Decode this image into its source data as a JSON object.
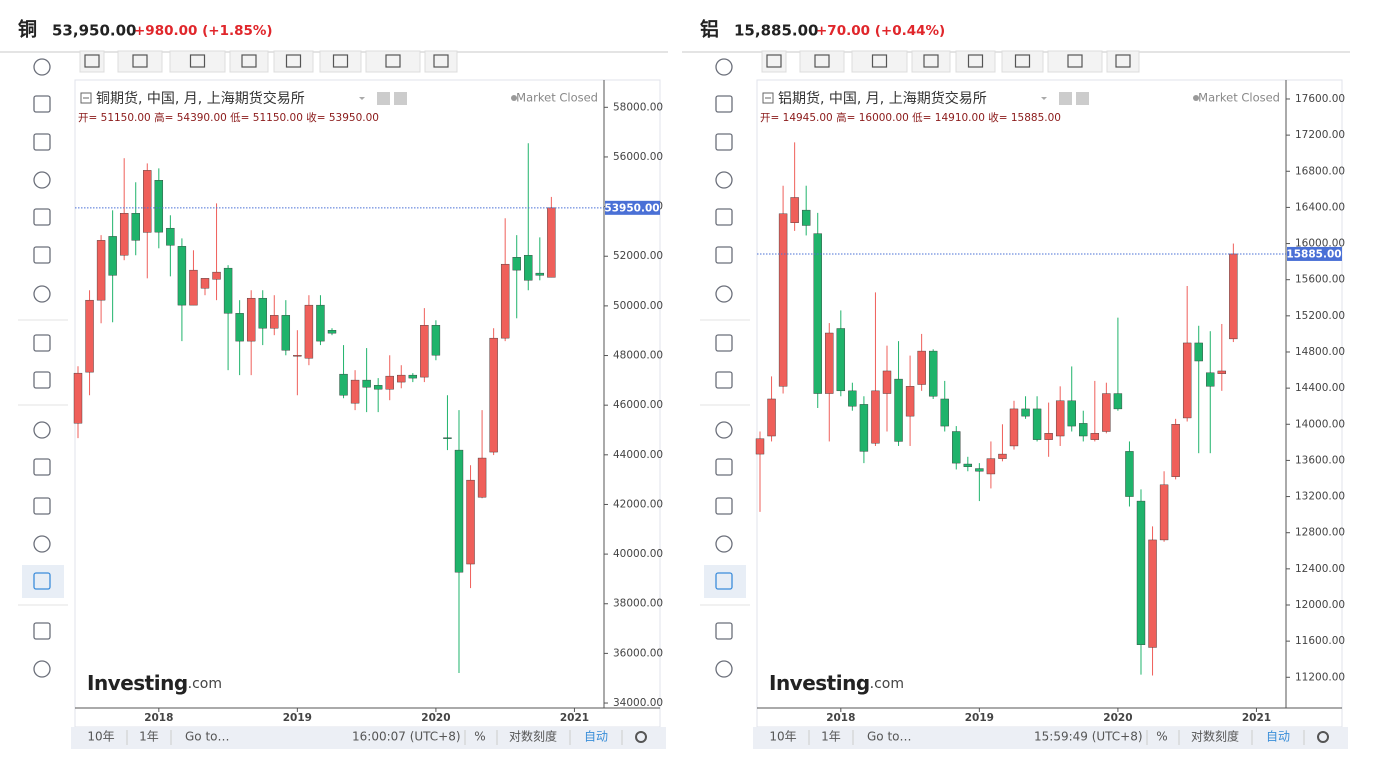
{
  "quotes": [
    {
      "symbol": "铜",
      "price": "53,950.00",
      "change": "+980.00 (+1.85%)"
    },
    {
      "symbol": "铝",
      "price": "15,885.00",
      "change": "+70.00 (+0.44%)"
    }
  ],
  "watermark": {
    "brand": "Investing",
    "suffix": ".com"
  },
  "chart_data": [
    {
      "type": "candlestick",
      "title": "铜期货, 中国, 月, 上海期货交易所",
      "status": "Market Closed",
      "ohlc_text": "开= 51150.00 高= 54390.00 低= 51150.00 收= 53950.00",
      "categories": [
        null,
        null,
        null,
        null,
        null,
        null,
        null,
        "2018",
        null,
        null,
        null,
        null,
        null,
        null,
        null,
        null,
        null,
        null,
        null,
        "2019",
        null,
        null,
        null,
        null,
        null,
        null,
        null,
        null,
        null,
        null,
        null,
        "2020",
        null,
        null,
        null,
        null,
        null,
        null,
        null,
        null,
        null,
        null,
        null,
        "2021"
      ],
      "open": [
        45270,
        47330,
        50230,
        52800,
        52040,
        53730,
        52960,
        55060,
        53130,
        52400,
        50030,
        50710,
        51070,
        51520,
        49700,
        48580,
        50310,
        49100,
        49620,
        47970,
        47890,
        50030,
        49020,
        47250,
        46080,
        47010,
        46800,
        46640,
        46930,
        47210,
        47130,
        49220,
        44690,
        44190,
        39600,
        42290,
        44110,
        48700,
        51960,
        52040,
        51320,
        51150,
        null,
        null
      ],
      "high": [
        47570,
        50630,
        52850,
        53850,
        55950,
        54980,
        55740,
        55540,
        53650,
        52720,
        52240,
        51110,
        54130,
        51640,
        50230,
        50630,
        50630,
        50430,
        50230,
        49020,
        50430,
        50430,
        49100,
        48420,
        47410,
        48300,
        47090,
        48010,
        47610,
        47290,
        49910,
        49420,
        46400,
        45800,
        43580,
        45800,
        49100,
        53530,
        52850,
        56550,
        52760,
        54390,
        null,
        null
      ],
      "low": [
        44670,
        46400,
        49300,
        49340,
        51840,
        52040,
        51110,
        52320,
        51190,
        48580,
        50030,
        50430,
        50230,
        47410,
        47210,
        47210,
        48420,
        48820,
        48010,
        46400,
        47610,
        48420,
        48820,
        46280,
        45800,
        45720,
        45720,
        46200,
        46680,
        46930,
        46930,
        47810,
        44190,
        35210,
        38630,
        42250,
        43990,
        48580,
        49500,
        50630,
        51030,
        51150,
        null,
        null
      ],
      "close": [
        47290,
        50230,
        52640,
        51230,
        53730,
        52640,
        55460,
        52970,
        52440,
        50030,
        51440,
        51110,
        51360,
        49700,
        48580,
        50310,
        49100,
        49620,
        48210,
        48010,
        50030,
        48580,
        48900,
        46400,
        47010,
        46720,
        46640,
        47170,
        47210,
        47090,
        49220,
        48010,
        44670,
        39270,
        42980,
        43870,
        48700,
        51680,
        51440,
        51030,
        51230,
        53950,
        null,
        null
      ],
      "up_color": "#ef5f5a",
      "down_color": "#1fb36b",
      "grid": false,
      "ylim": [
        33800,
        59100
      ],
      "yticks": [
        {
          "value": 34000,
          "label": "34000.00"
        },
        {
          "value": 36000,
          "label": "36000.00"
        },
        {
          "value": 38000,
          "label": "38000.00"
        },
        {
          "value": 40000,
          "label": "40000.00"
        },
        {
          "value": 42000,
          "label": "42000.00"
        },
        {
          "value": 44000,
          "label": "44000.00"
        },
        {
          "value": 46000,
          "label": "46000.00"
        },
        {
          "value": 48000,
          "label": "48000.00"
        },
        {
          "value": 50000,
          "label": "50000.00"
        },
        {
          "value": 52000,
          "label": "52000.00"
        },
        {
          "value": 54000,
          "label": "54000.00"
        },
        {
          "value": 56000,
          "label": "56000.00"
        },
        {
          "value": 58000,
          "label": "58000.00"
        }
      ],
      "last_price": {
        "value": 53950,
        "label": "53950.00"
      },
      "last_color": "#4a70d6"
    },
    {
      "type": "candlestick",
      "title": "铝期货, 中国, 月, 上海期货交易所",
      "status": "Market Closed",
      "ohlc_text": "开= 14945.00 高= 16000.00 低= 14910.00 收= 15885.00",
      "categories": [
        null,
        null,
        null,
        null,
        null,
        null,
        null,
        "2018",
        null,
        null,
        null,
        null,
        null,
        null,
        null,
        null,
        null,
        null,
        null,
        "2019",
        null,
        null,
        null,
        null,
        null,
        null,
        null,
        null,
        null,
        null,
        null,
        "2020",
        null,
        null,
        null,
        null,
        null,
        null,
        null,
        null,
        null,
        null,
        null,
        "2021"
      ],
      "open": [
        13670,
        13870,
        14420,
        16230,
        16370,
        16110,
        14340,
        15060,
        14370,
        14220,
        13790,
        14340,
        14500,
        14090,
        14440,
        14810,
        14280,
        13920,
        13560,
        13510,
        13450,
        13620,
        13760,
        14170,
        14170,
        13830,
        13870,
        14260,
        14010,
        13830,
        13920,
        14340,
        13700,
        13150,
        11530,
        12720,
        13420,
        14070,
        14900,
        14570,
        14560,
        14945,
        null,
        null
      ],
      "high": [
        13920,
        14530,
        16640,
        17120,
        16640,
        16340,
        15120,
        15260,
        14460,
        14310,
        15460,
        14870,
        14920,
        14760,
        15000,
        14830,
        14480,
        13980,
        13640,
        13570,
        13810,
        14000,
        14260,
        14310,
        14310,
        14240,
        14420,
        14640,
        14150,
        14480,
        14460,
        15180,
        13810,
        13280,
        12870,
        13480,
        14060,
        15530,
        15090,
        15030,
        15110,
        16000,
        null,
        null
      ],
      "low": [
        13030,
        13810,
        14340,
        16140,
        16090,
        14180,
        13810,
        14310,
        14150,
        13570,
        13760,
        13920,
        13760,
        13760,
        14370,
        14280,
        13920,
        13500,
        13480,
        13150,
        13290,
        13590,
        13720,
        14060,
        13810,
        13640,
        13760,
        13920,
        13810,
        13810,
        13900,
        14150,
        13090,
        11230,
        11220,
        12700,
        13390,
        14030,
        13680,
        13680,
        14370,
        14910,
        null,
        null
      ],
      "close": [
        13840,
        14280,
        16330,
        16510,
        16200,
        14340,
        15010,
        14370,
        14200,
        13700,
        14370,
        14590,
        13810,
        14420,
        14810,
        14310,
        13980,
        13570,
        13530,
        13480,
        13620,
        13670,
        14170,
        14090,
        13830,
        13900,
        14260,
        13980,
        13870,
        13900,
        14340,
        14170,
        13200,
        11560,
        12720,
        13330,
        14000,
        14900,
        14700,
        14420,
        14590,
        15885,
        null,
        null
      ],
      "up_color": "#ef5f5a",
      "down_color": "#1fb36b",
      "grid": false,
      "ylim": [
        10860,
        17810
      ],
      "yticks": [
        {
          "value": 11200,
          "label": "11200.00"
        },
        {
          "value": 11600,
          "label": "11600.00"
        },
        {
          "value": 12000,
          "label": "12000.00"
        },
        {
          "value": 12400,
          "label": "12400.00"
        },
        {
          "value": 12800,
          "label": "12800.00"
        },
        {
          "value": 13200,
          "label": "13200.00"
        },
        {
          "value": 13600,
          "label": "13600.00"
        },
        {
          "value": 14000,
          "label": "14000.00"
        },
        {
          "value": 14400,
          "label": "14400.00"
        },
        {
          "value": 14800,
          "label": "14800.00"
        },
        {
          "value": 15200,
          "label": "15200.00"
        },
        {
          "value": 15600,
          "label": "15600.00"
        },
        {
          "value": 16000,
          "label": "16000.00"
        },
        {
          "value": 16400,
          "label": "16400.00"
        },
        {
          "value": 16800,
          "label": "16800.00"
        },
        {
          "value": 17200,
          "label": "17200.00"
        },
        {
          "value": 17600,
          "label": "17600.00"
        }
      ],
      "last_price": {
        "value": 15885,
        "label": "15885.00"
      },
      "last_color": "#4a70d6"
    }
  ],
  "footers": [
    {
      "ranges": [
        "10年",
        "1年"
      ],
      "goto": "Go to…",
      "time": "16:00:07 (UTC+8)",
      "options": [
        "%",
        "对数刻度",
        "自动"
      ]
    },
    {
      "ranges": [
        "10年",
        "1年"
      ],
      "goto": "Go to…",
      "time": "15:59:49 (UTC+8)",
      "options": [
        "%",
        "对数刻度",
        "自动"
      ]
    }
  ]
}
